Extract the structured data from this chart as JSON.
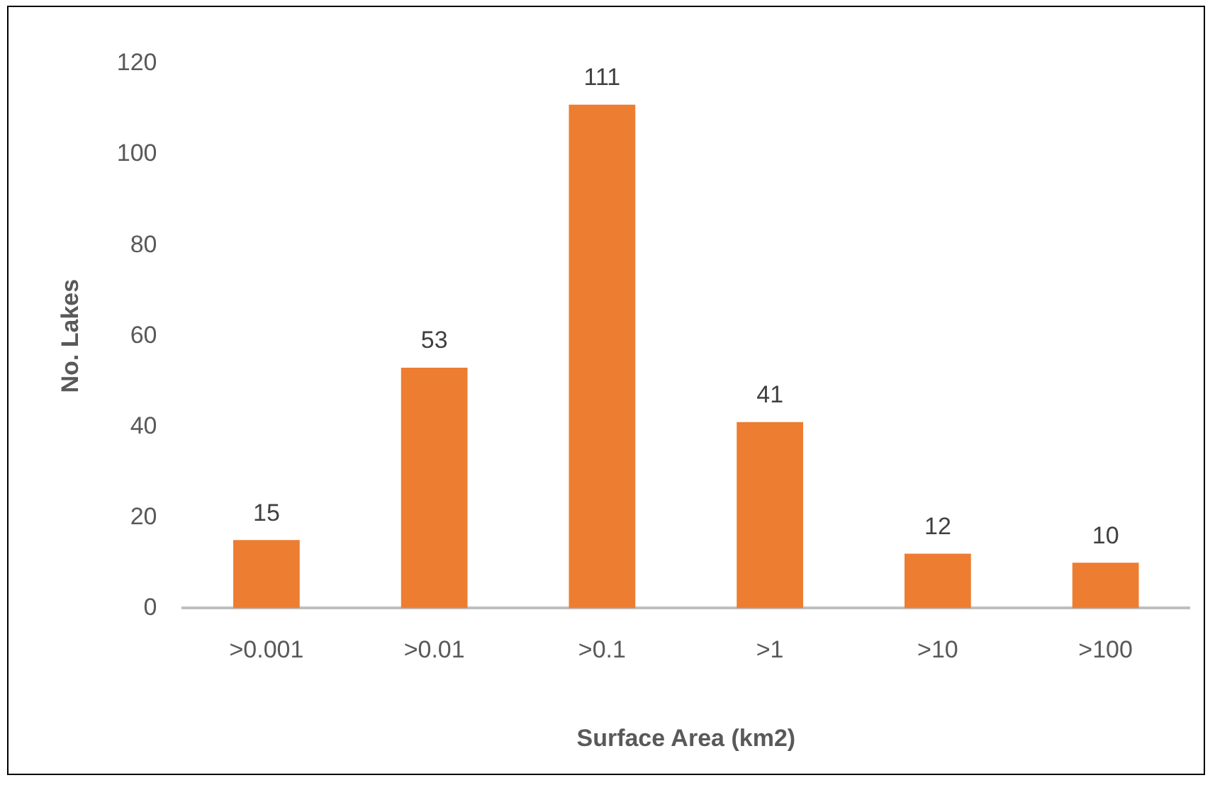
{
  "chart_data": {
    "type": "bar",
    "xlabel": "Surface Area (km2)",
    "ylabel": "No. Lakes",
    "categories": [
      ">0.001",
      ">0.01",
      ">0.1",
      ">1",
      ">10",
      ">100"
    ],
    "values": [
      15,
      53,
      111,
      41,
      12,
      10
    ],
    "color": "#ed7d31",
    "ylim": [
      0,
      120
    ],
    "yticks": [
      0,
      20,
      40,
      60,
      80,
      100,
      120
    ],
    "grid": false,
    "legend": false,
    "data_labels": true
  }
}
